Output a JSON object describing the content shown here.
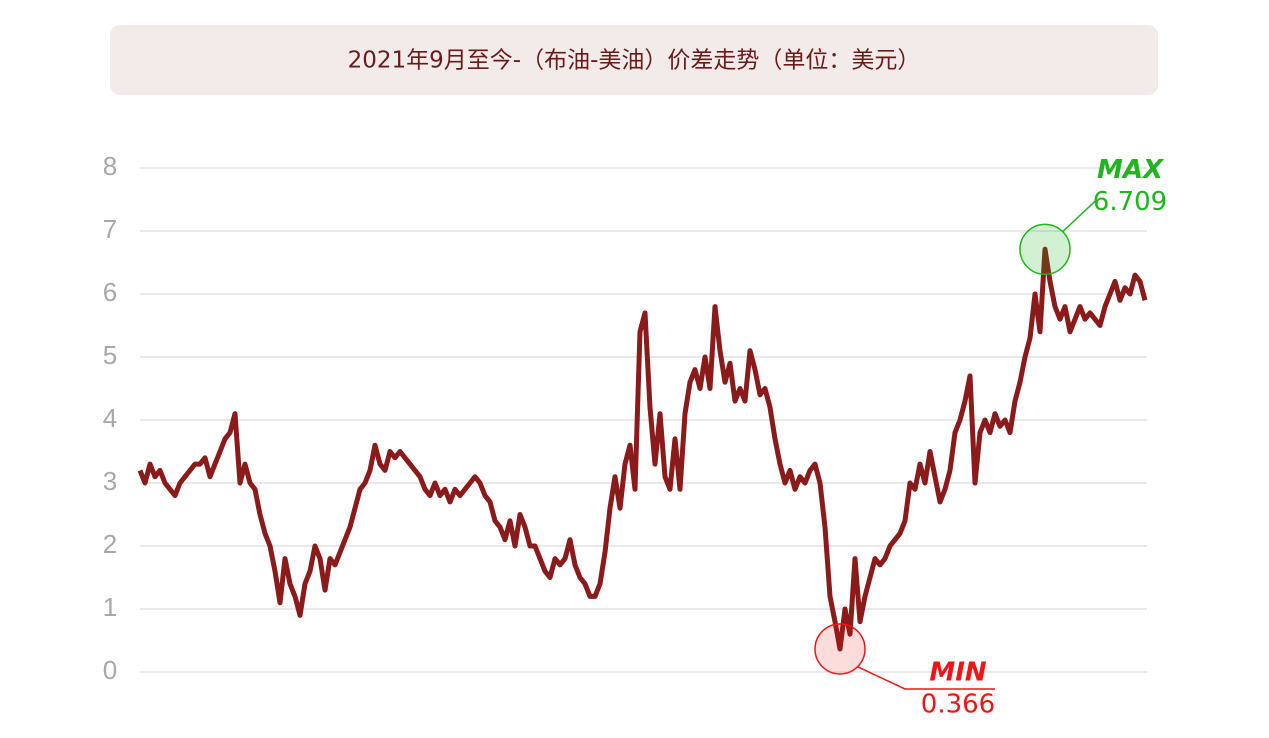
{
  "chart_data": {
    "type": "line",
    "title": "2021年9月至今-（布油-美油）价差走势（单位：美元）",
    "color": "#8b1a1a",
    "max_label": "MAX",
    "max_color": "#1fb51f",
    "min_label": "MIN",
    "min_color": "#f01414",
    "ylim": [
      0,
      8
    ],
    "yticks": [
      0,
      1,
      2,
      3,
      4,
      5,
      6,
      7,
      8
    ],
    "grid": true,
    "values": [
      3.2,
      3.0,
      3.3,
      3.1,
      3.2,
      3.0,
      2.9,
      2.8,
      3.0,
      3.1,
      3.2,
      3.3,
      3.3,
      3.4,
      3.1,
      3.3,
      3.5,
      3.7,
      3.8,
      4.1,
      3.0,
      3.3,
      3.0,
      2.9,
      2.5,
      2.2,
      2.0,
      1.6,
      1.1,
      1.8,
      1.4,
      1.2,
      0.9,
      1.4,
      1.6,
      2.0,
      1.8,
      1.3,
      1.8,
      1.7,
      1.9,
      2.1,
      2.3,
      2.6,
      2.9,
      3.0,
      3.2,
      3.6,
      3.3,
      3.2,
      3.5,
      3.4,
      3.5,
      3.4,
      3.3,
      3.2,
      3.1,
      2.9,
      2.8,
      3.0,
      2.8,
      2.9,
      2.7,
      2.9,
      2.8,
      2.9,
      3.0,
      3.1,
      3.0,
      2.8,
      2.7,
      2.4,
      2.3,
      2.1,
      2.4,
      2.0,
      2.5,
      2.3,
      2.0,
      2.0,
      1.8,
      1.6,
      1.5,
      1.8,
      1.7,
      1.8,
      2.1,
      1.7,
      1.5,
      1.4,
      1.2,
      1.2,
      1.4,
      1.9,
      2.6,
      3.1,
      2.6,
      3.3,
      3.6,
      2.9,
      5.4,
      5.7,
      4.2,
      3.3,
      4.1,
      3.1,
      2.9,
      3.7,
      2.9,
      4.1,
      4.6,
      4.8,
      4.5,
      5.0,
      4.5,
      5.8,
      5.1,
      4.6,
      4.9,
      4.3,
      4.5,
      4.3,
      5.1,
      4.8,
      4.4,
      4.5,
      4.2,
      3.7,
      3.3,
      3.0,
      3.2,
      2.9,
      3.1,
      3.0,
      3.2,
      3.3,
      3.0,
      2.3,
      1.2,
      0.8,
      0.366,
      1.0,
      0.6,
      1.8,
      0.8,
      1.2,
      1.5,
      1.8,
      1.7,
      1.8,
      2.0,
      2.1,
      2.2,
      2.4,
      3.0,
      2.9,
      3.3,
      3.0,
      3.5,
      3.1,
      2.7,
      2.9,
      3.2,
      3.8,
      4.0,
      4.3,
      4.7,
      3.0,
      3.8,
      4.0,
      3.8,
      4.1,
      3.9,
      4.0,
      3.8,
      4.3,
      4.6,
      5.0,
      5.3,
      6.0,
      5.4,
      6.709,
      6.2,
      5.8,
      5.6,
      5.8,
      5.4,
      5.6,
      5.8,
      5.6,
      5.7,
      5.6,
      5.5,
      5.8,
      6.0,
      6.2,
      5.9,
      6.1,
      6.0,
      6.3,
      6.2,
      5.9
    ]
  }
}
